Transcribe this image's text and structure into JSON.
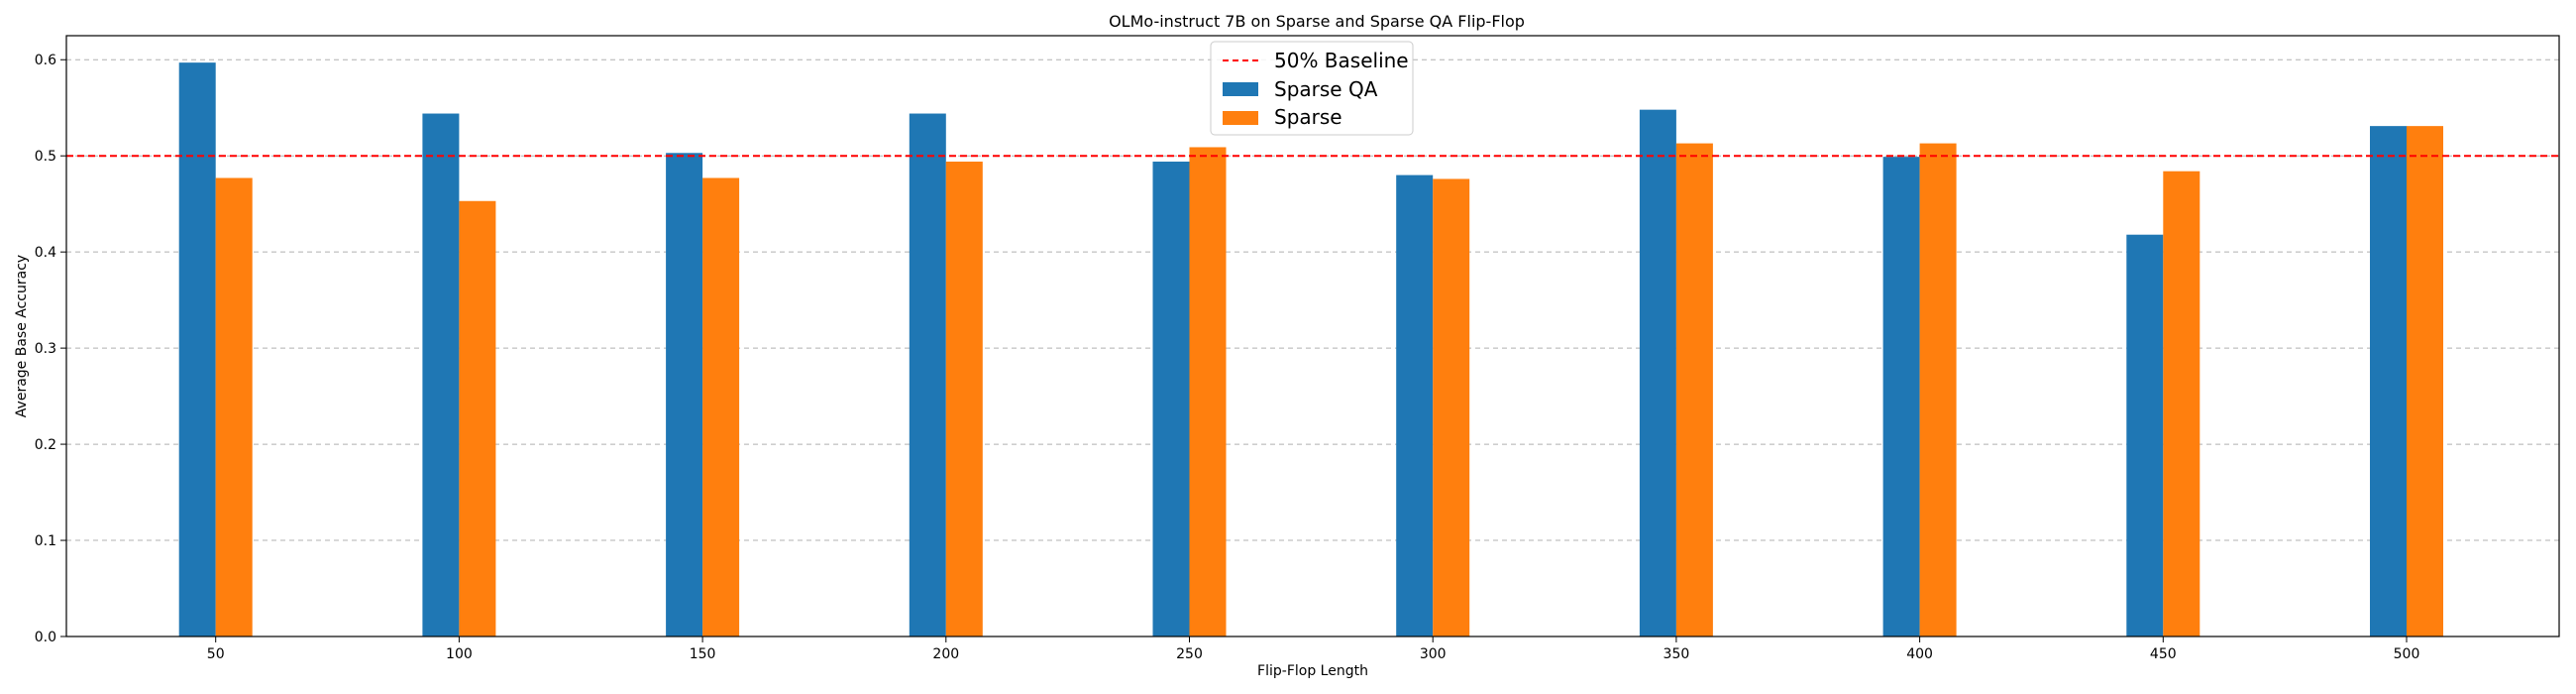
{
  "chart_data": {
    "type": "bar",
    "title": "OLMo-instruct 7B on Sparse and Sparse QA Flip-Flop",
    "xlabel": "Flip-Flop Length",
    "ylabel": "Average Base Accuracy",
    "categories": [
      "50",
      "100",
      "150",
      "200",
      "250",
      "300",
      "350",
      "400",
      "450",
      "500"
    ],
    "series": [
      {
        "name": "Sparse QA",
        "color": "#1f77b4",
        "values": [
          0.597,
          0.544,
          0.503,
          0.544,
          0.494,
          0.48,
          0.548,
          0.499,
          0.418,
          0.531
        ]
      },
      {
        "name": "Sparse",
        "color": "#ff7f0e",
        "values": [
          0.477,
          0.453,
          0.477,
          0.494,
          0.509,
          0.476,
          0.513,
          0.513,
          0.484,
          0.531
        ]
      }
    ],
    "baseline": {
      "label": "50% Baseline",
      "value": 0.5,
      "color": "#ff0000"
    },
    "yticks": [
      "0.0",
      "0.1",
      "0.2",
      "0.3",
      "0.4",
      "0.5",
      "0.6"
    ],
    "ylim": [
      0,
      0.625
    ],
    "grid": "y",
    "legend": "top-center"
  }
}
